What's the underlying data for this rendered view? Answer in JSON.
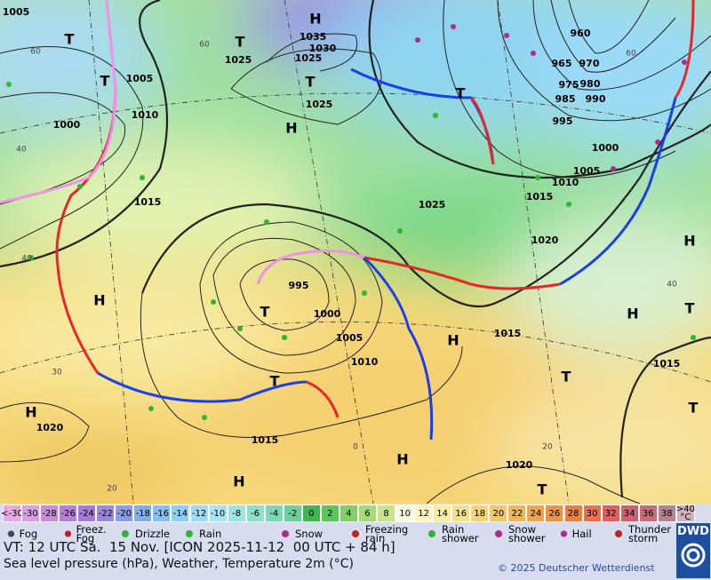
{
  "map": {
    "pressure_labels": [
      "1005",
      "1035",
      "1030",
      "1025",
      "1025",
      "1005",
      "1010",
      "1000",
      "1015",
      "1025",
      "960",
      "965",
      "970",
      "975",
      "980",
      "985",
      "990",
      "995",
      "1000",
      "1005",
      "1010",
      "1015",
      "1020",
      "1025",
      "995",
      "1000",
      "1005",
      "1010",
      "1015",
      "1015",
      "1020",
      "1020",
      "1015"
    ],
    "systems": [
      "H",
      "T",
      "T",
      "T",
      "T",
      "H",
      "T",
      "H",
      "H",
      "T",
      "H",
      "H",
      "T",
      "T",
      "T",
      "T",
      "H",
      "H",
      "H",
      "T"
    ],
    "isotherm_labels": [
      "60",
      "60",
      "40",
      "40",
      "30",
      "20",
      "0",
      "20",
      "40",
      "60"
    ]
  },
  "temperature_scale": {
    "low": "<-30",
    "low_color": "#e4a8e4",
    "values": [
      -30,
      -28,
      -26,
      -24,
      -22,
      -20,
      -18,
      -16,
      -14,
      -12,
      -10,
      -8,
      -6,
      -4,
      -2,
      0,
      2,
      4,
      6,
      8,
      10,
      12,
      14,
      16,
      18,
      20,
      22,
      24,
      26,
      28,
      30,
      32,
      34,
      36,
      38
    ],
    "colors": [
      "#d7a0e2",
      "#c78ddc",
      "#b77fd8",
      "#a67ad6",
      "#9a88e0",
      "#8a9cea",
      "#82aeee",
      "#86bff4",
      "#8dcdf6",
      "#9bdaf8",
      "#a7e4f6",
      "#9de6e4",
      "#8de0cc",
      "#7cd8b4",
      "#6ad09a",
      "#3cb84e",
      "#5cc65a",
      "#80d066",
      "#a4db76",
      "#c6e589",
      "#fafae2",
      "#fdf4bf",
      "#fbeca2",
      "#f8e08a",
      "#f5d476",
      "#f3c765",
      "#f1b756",
      "#f0a54a",
      "#ee9345",
      "#eb7f43",
      "#e8704b",
      "#df605f",
      "#d1606e",
      "#c66a7c",
      "#b6828e"
    ],
    "high": ">40 °C",
    "high_color": "#d4b2bc"
  },
  "legend": [
    "Fog",
    "Freez. Fog",
    "Drizzle",
    "Rain",
    "Snow",
    "Freezing rain",
    "Rain shower",
    "Snow shower",
    "Hail",
    "Thunder storm"
  ],
  "footer": {
    "valid_time": "VT: 12 UTC Sa.  15 Nov. [ICON 2025-11-12  00 UTC + 84 h]",
    "subtitle": "Sea level pressure (hPa), Weather, Temperature 2m (°C)",
    "copyright": "© 2025 Deutscher Wetterdienst",
    "logo": "DWD"
  }
}
